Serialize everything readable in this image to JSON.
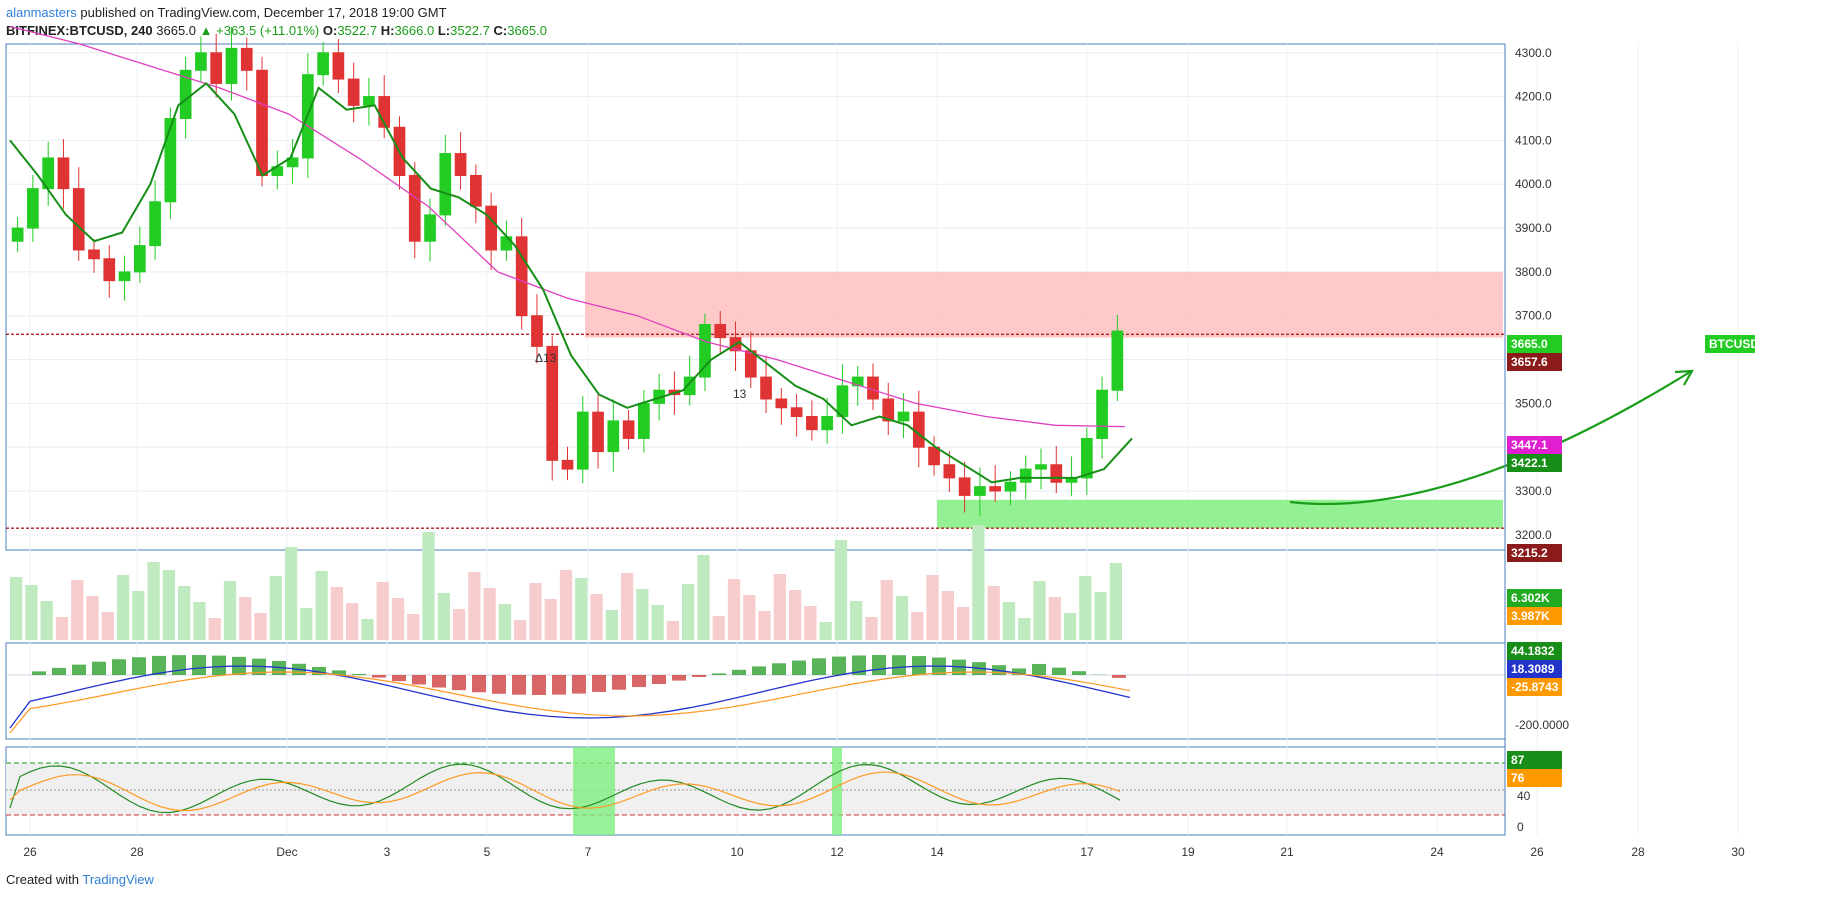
{
  "header": {
    "line1_user": "alanmasters",
    "line1_rest": " published on TradingView.com, December 17, 2018 19:00 GMT",
    "symbol": "BITFINEX:BTCUSD, 240",
    "price": "3665.0",
    "change": "▲ +363.5 (+11.01%)",
    "o_label": "O:",
    "o": "3522.7",
    "h_label": "H:",
    "h": "3666.0",
    "l_label": "L:",
    "l": "3522.7",
    "c_label": "C:",
    "c": "3665.0"
  },
  "footer": {
    "created_with": "Created with",
    "brand": "TradingView"
  },
  "colors": {
    "up": "#22cc22",
    "down": "#e03333",
    "ema_fast": "#178e17",
    "ma_slow": "#e040c0",
    "resistance_zone": "#ffc0c0",
    "support_zone": "#80ee80",
    "macd_line": "#2233cc",
    "signal_line": "#ff9922",
    "rsi_k": "#228b22",
    "rsi_d": "#ff9922"
  },
  "chart_data": {
    "type": "candlestick",
    "symbol": "BTCUSD",
    "price_axis": {
      "ylim": [
        3170,
        4320
      ],
      "ticks": [
        3200,
        3300,
        3400,
        3500,
        3600,
        3700,
        3800,
        3900,
        4000,
        4100,
        4200,
        4300
      ],
      "tick_labels": [
        "3200.0",
        "3300.0",
        "3400.0",
        "3500.0",
        "3600.0",
        "3700.0",
        "3800.0",
        "3900.0",
        "4000.0",
        "4100.0",
        "4200.0",
        "4300.0"
      ]
    },
    "x_axis": {
      "labels": [
        "26",
        "28",
        "Dec",
        "3",
        "5",
        "7",
        "10",
        "12",
        "14",
        "17",
        "19",
        "21",
        "24",
        "26",
        "28",
        "30"
      ]
    },
    "close_path": [
      3900,
      3990,
      4060,
      3990,
      3850,
      3830,
      3780,
      3800,
      3860,
      3960,
      4150,
      4260,
      4300,
      4230,
      4310,
      4260,
      4020,
      4040,
      4060,
      4250,
      4300,
      4240,
      4180,
      4200,
      4130,
      4020,
      3870,
      3930,
      4070,
      4020,
      3950,
      3850,
      3880,
      3700,
      3630,
      3370,
      3350,
      3480,
      3390,
      3460,
      3420,
      3500,
      3530,
      3520,
      3560,
      3680,
      3650,
      3620,
      3560,
      3510,
      3490,
      3470,
      3440,
      3470,
      3540,
      3560,
      3510,
      3460,
      3480,
      3400,
      3360,
      3330,
      3290,
      3310,
      3300,
      3320,
      3350,
      3360,
      3320,
      3330,
      3420,
      3530,
      3665
    ],
    "ema_fast_path": [
      4100,
      4020,
      3930,
      3870,
      3890,
      4000,
      4180,
      4230,
      4160,
      4020,
      4060,
      4220,
      4170,
      4180,
      4060,
      3990,
      3970,
      3930,
      3860,
      3760,
      3610,
      3520,
      3490,
      3510,
      3530,
      3600,
      3640,
      3590,
      3540,
      3510,
      3450,
      3470,
      3450,
      3400,
      3360,
      3320,
      3330,
      3330,
      3330,
      3350,
      3420
    ],
    "ma_slow_path": [
      4360,
      4320,
      4270,
      4220,
      4160,
      4060,
      3950,
      3800,
      3740,
      3700,
      3640,
      3600,
      3550,
      3500,
      3470,
      3450,
      3447
    ],
    "zones": [
      {
        "name": "resistance",
        "from": 3650,
        "to": 3800
      },
      {
        "name": "support",
        "from": 3215,
        "to": 3280
      }
    ],
    "levels": [
      {
        "name": "resistance-line",
        "value": 3657.6
      },
      {
        "name": "support-line",
        "value": 3215.2
      }
    ],
    "price_tags": [
      {
        "label": "BTCUSD",
        "value": "3665.0",
        "color": "#22cc22"
      },
      {
        "label": "",
        "value": "3657.6",
        "color": "#8b1a1a"
      },
      {
        "label": "",
        "value": "3447.1",
        "color": "#e020d0"
      },
      {
        "label": "",
        "value": "3422.1",
        "color": "#178e17"
      },
      {
        "label": "",
        "value": "3215.2",
        "color": "#8b1a1a"
      }
    ],
    "volume": {
      "tags": [
        {
          "value": "6.302K",
          "color": "#22aa22"
        },
        {
          "value": "3.987K",
          "color": "#ff9900"
        }
      ]
    },
    "macd": {
      "tick_label": "-200.0000",
      "tags": [
        {
          "value": "44.1832",
          "color": "#178e17"
        },
        {
          "value": "18.3089",
          "color": "#2233cc"
        },
        {
          "value": "-25.8743",
          "color": "#ff9900"
        }
      ]
    },
    "rsi": {
      "ticks": [
        0,
        40
      ],
      "tags": [
        {
          "value": "87",
          "color": "#178e17"
        },
        {
          "value": "76",
          "color": "#ff9900"
        }
      ]
    },
    "annotations": [
      {
        "text": "Δ13"
      },
      {
        "text": "13"
      }
    ]
  }
}
